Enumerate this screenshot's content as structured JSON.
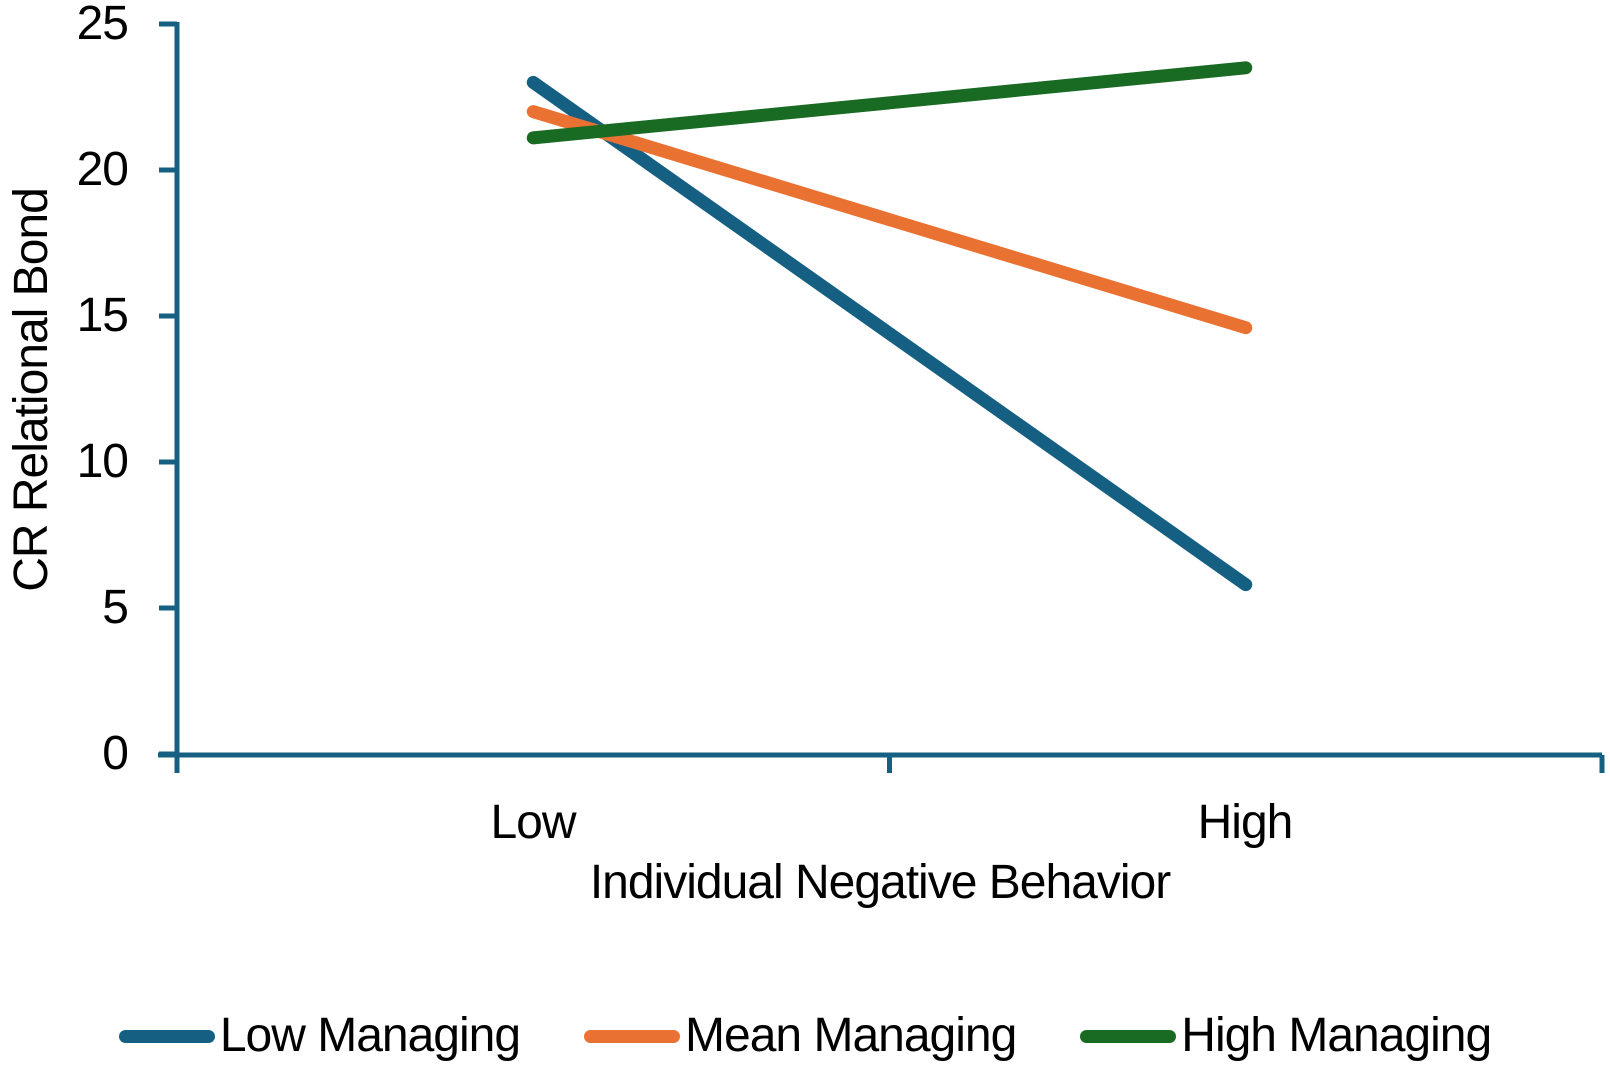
{
  "chart_data": {
    "type": "line",
    "categories": [
      "Low",
      "High"
    ],
    "series": [
      {
        "name": "Low Managing",
        "color": "#156082",
        "values": [
          23.0,
          5.8
        ]
      },
      {
        "name": "Mean Managing",
        "color": "#E97132",
        "values": [
          22.0,
          14.6
        ]
      },
      {
        "name": "High Managing",
        "color": "#196B24",
        "values": [
          21.1,
          23.5
        ]
      }
    ],
    "title": "",
    "xlabel": "Individual Negative Behavior",
    "ylabel": "CR Relational Bond",
    "ylim": [
      0,
      25
    ],
    "ytick_interval": 5,
    "ytick_labels": [
      "25",
      "20",
      "15",
      "10",
      "5",
      "0"
    ],
    "axis_color": "#156082",
    "grid": false,
    "legend_position": "bottom",
    "line_width": 13
  }
}
